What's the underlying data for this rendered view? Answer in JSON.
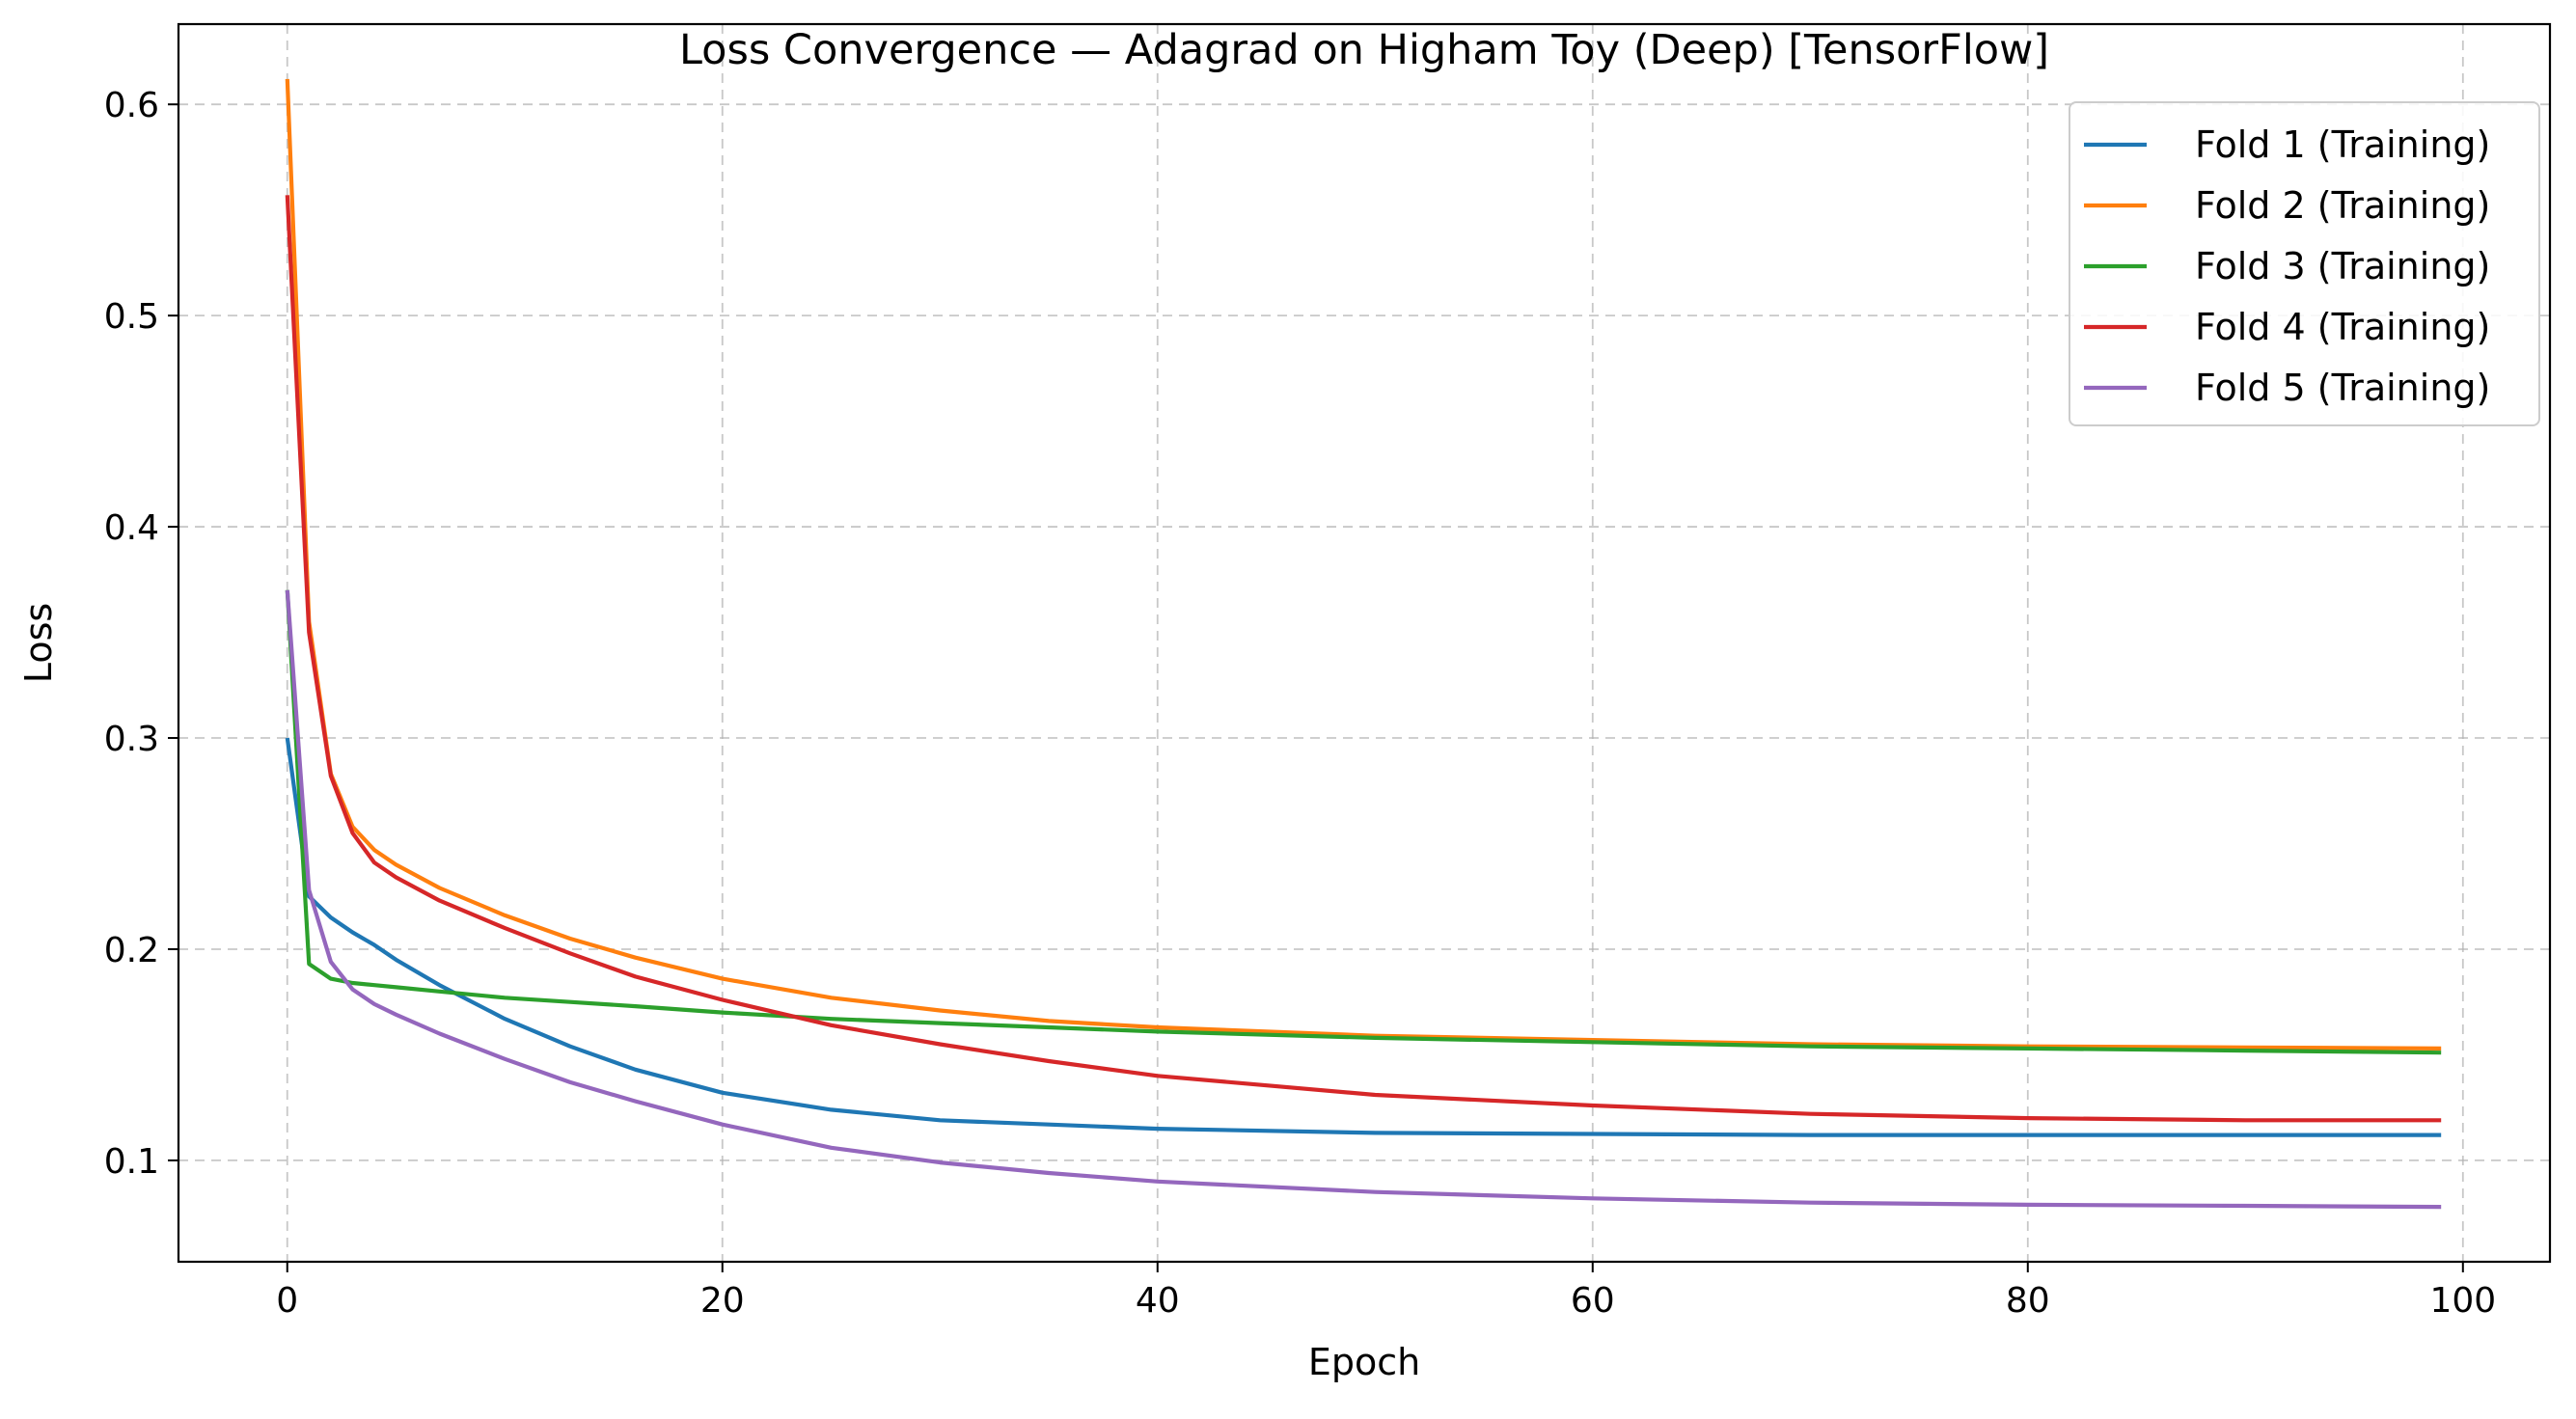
{
  "chart_data": {
    "type": "line",
    "title": "Loss Convergence — Adagrad on Higham Toy (Deep) [TensorFlow]",
    "xlabel": "Epoch",
    "ylabel": "Loss",
    "xlim": [
      -5,
      104
    ],
    "ylim": [
      0.052,
      0.638
    ],
    "x_ticks": [
      0,
      20,
      40,
      60,
      80,
      100
    ],
    "y_ticks": [
      0.1,
      0.2,
      0.3,
      0.4,
      0.5,
      0.6
    ],
    "grid": true,
    "legend_position": "top-right",
    "series": [
      {
        "name": "Fold 1 (Training)",
        "color": "#1f77b4",
        "points": [
          [
            0,
            0.3
          ],
          [
            1,
            0.225
          ],
          [
            2,
            0.215
          ],
          [
            3,
            0.208
          ],
          [
            4,
            0.202
          ],
          [
            5,
            0.195
          ],
          [
            7,
            0.183
          ],
          [
            10,
            0.167
          ],
          [
            13,
            0.154
          ],
          [
            16,
            0.143
          ],
          [
            20,
            0.132
          ],
          [
            25,
            0.124
          ],
          [
            30,
            0.119
          ],
          [
            35,
            0.117
          ],
          [
            40,
            0.115
          ],
          [
            50,
            0.113
          ],
          [
            60,
            0.1125
          ],
          [
            70,
            0.112
          ],
          [
            80,
            0.112
          ],
          [
            90,
            0.112
          ],
          [
            99,
            0.112
          ]
        ]
      },
      {
        "name": "Fold 2 (Training)",
        "color": "#ff7f0e",
        "points": [
          [
            0,
            0.612
          ],
          [
            1,
            0.355
          ],
          [
            2,
            0.283
          ],
          [
            3,
            0.258
          ],
          [
            4,
            0.247
          ],
          [
            5,
            0.24
          ],
          [
            7,
            0.229
          ],
          [
            10,
            0.216
          ],
          [
            13,
            0.205
          ],
          [
            16,
            0.196
          ],
          [
            20,
            0.186
          ],
          [
            25,
            0.177
          ],
          [
            30,
            0.171
          ],
          [
            35,
            0.166
          ],
          [
            40,
            0.163
          ],
          [
            50,
            0.159
          ],
          [
            60,
            0.157
          ],
          [
            70,
            0.155
          ],
          [
            80,
            0.154
          ],
          [
            90,
            0.1535
          ],
          [
            99,
            0.153
          ]
        ]
      },
      {
        "name": "Fold 3 (Training)",
        "color": "#2ca02c",
        "points": [
          [
            0,
            0.37
          ],
          [
            1,
            0.193
          ],
          [
            2,
            0.186
          ],
          [
            3,
            0.184
          ],
          [
            4,
            0.183
          ],
          [
            5,
            0.182
          ],
          [
            7,
            0.18
          ],
          [
            10,
            0.177
          ],
          [
            13,
            0.175
          ],
          [
            16,
            0.173
          ],
          [
            20,
            0.17
          ],
          [
            25,
            0.167
          ],
          [
            30,
            0.165
          ],
          [
            35,
            0.163
          ],
          [
            40,
            0.161
          ],
          [
            50,
            0.158
          ],
          [
            60,
            0.156
          ],
          [
            70,
            0.154
          ],
          [
            80,
            0.153
          ],
          [
            90,
            0.152
          ],
          [
            99,
            0.151
          ]
        ]
      },
      {
        "name": "Fold 4 (Training)",
        "color": "#d62728",
        "points": [
          [
            0,
            0.557
          ],
          [
            1,
            0.35
          ],
          [
            2,
            0.282
          ],
          [
            3,
            0.255
          ],
          [
            4,
            0.241
          ],
          [
            5,
            0.234
          ],
          [
            7,
            0.223
          ],
          [
            10,
            0.21
          ],
          [
            13,
            0.198
          ],
          [
            16,
            0.187
          ],
          [
            20,
            0.176
          ],
          [
            25,
            0.164
          ],
          [
            30,
            0.155
          ],
          [
            35,
            0.147
          ],
          [
            40,
            0.14
          ],
          [
            50,
            0.131
          ],
          [
            60,
            0.126
          ],
          [
            70,
            0.122
          ],
          [
            80,
            0.12
          ],
          [
            90,
            0.119
          ],
          [
            99,
            0.119
          ]
        ]
      },
      {
        "name": "Fold 5 (Training)",
        "color": "#9467bd",
        "points": [
          [
            0,
            0.37
          ],
          [
            1,
            0.228
          ],
          [
            2,
            0.194
          ],
          [
            3,
            0.181
          ],
          [
            4,
            0.174
          ],
          [
            5,
            0.169
          ],
          [
            7,
            0.16
          ],
          [
            10,
            0.148
          ],
          [
            13,
            0.137
          ],
          [
            16,
            0.128
          ],
          [
            20,
            0.117
          ],
          [
            25,
            0.106
          ],
          [
            30,
            0.099
          ],
          [
            35,
            0.094
          ],
          [
            40,
            0.09
          ],
          [
            50,
            0.085
          ],
          [
            60,
            0.082
          ],
          [
            70,
            0.08
          ],
          [
            80,
            0.079
          ],
          [
            90,
            0.0785
          ],
          [
            99,
            0.078
          ]
        ]
      }
    ]
  }
}
